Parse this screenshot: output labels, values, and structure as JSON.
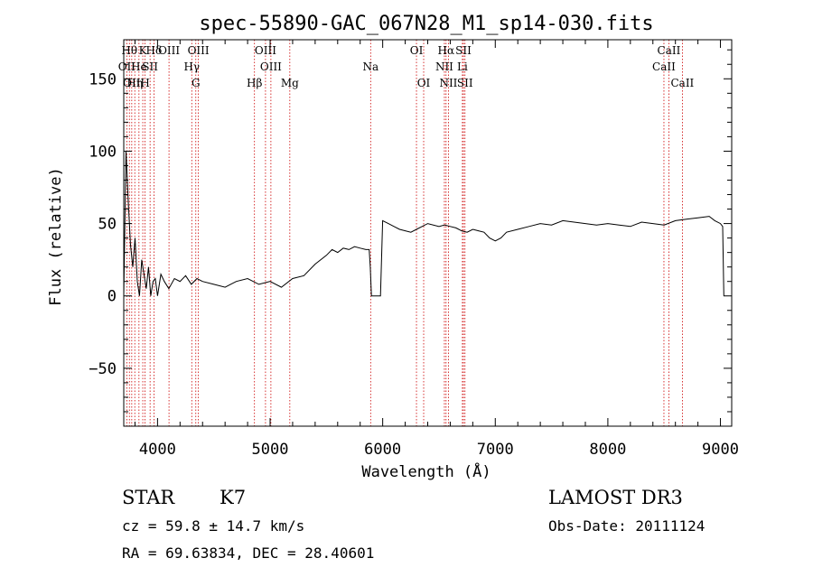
{
  "chart_data": {
    "type": "line",
    "title": "spec-55890-GAC_067N28_M1_sp14-030.fits",
    "xlabel": "Wavelength (Å)",
    "ylabel": "Flux (relative)",
    "xlim": [
      3700,
      9100
    ],
    "ylim": [
      -90,
      177
    ],
    "xticks": [
      4000,
      5000,
      6000,
      7000,
      8000,
      9000
    ],
    "yticks": [
      -50,
      0,
      50,
      100,
      150
    ],
    "grid": false,
    "line_color": "#000000",
    "marker_color": "#cc0000",
    "series": [
      {
        "x": [
          3700,
          3720,
          3740,
          3760,
          3780,
          3800,
          3820,
          3840,
          3860,
          3880,
          3900,
          3920,
          3940,
          3960,
          3980,
          4000,
          4030,
          4060,
          4100,
          4150,
          4200,
          4250,
          4300,
          4350,
          4400,
          4500,
          4600,
          4700,
          4800,
          4900,
          5000,
          5100,
          5200,
          5300,
          5400,
          5500,
          5550,
          5600,
          5650,
          5700,
          5750,
          5800,
          5850,
          5880,
          5890,
          5900,
          5960,
          5980,
          6000,
          6050,
          6100,
          6150,
          6200,
          6250,
          6300,
          6350,
          6400,
          6500,
          6550,
          6600,
          6650,
          6700,
          6750,
          6800,
          6850,
          6900,
          6950,
          7000,
          7050,
          7100,
          7200,
          7300,
          7400,
          7500,
          7600,
          7700,
          7800,
          7900,
          8000,
          8100,
          8200,
          8300,
          8400,
          8500,
          8600,
          8700,
          8800,
          8900,
          8950,
          9000,
          9020,
          9030
        ],
        "y": [
          0,
          100,
          65,
          35,
          20,
          40,
          10,
          0,
          25,
          15,
          5,
          20,
          0,
          10,
          12,
          0,
          15,
          10,
          5,
          12,
          10,
          14,
          8,
          12,
          10,
          8,
          6,
          10,
          12,
          8,
          10,
          6,
          12,
          14,
          22,
          28,
          32,
          30,
          33,
          32,
          34,
          33,
          32,
          32,
          20,
          0,
          0,
          0,
          52,
          50,
          48,
          46,
          45,
          44,
          46,
          48,
          50,
          48,
          49,
          48,
          47,
          45,
          44,
          46,
          45,
          44,
          40,
          38,
          40,
          44,
          46,
          48,
          50,
          49,
          52,
          51,
          50,
          49,
          50,
          49,
          48,
          51,
          50,
          49,
          52,
          53,
          54,
          55,
          52,
          50,
          48,
          0
        ]
      }
    ],
    "markers": [
      {
        "x": 3727,
        "label": "OII",
        "row": 2
      },
      {
        "x": 3750,
        "label": "Hθ",
        "row": 1
      },
      {
        "x": 3771,
        "label": "OII",
        "row": 3
      },
      {
        "x": 3798,
        "label": "Hη",
        "row": 3
      },
      {
        "x": 3835,
        "label": "He",
        "row": 2
      },
      {
        "x": 3869,
        "label": "K",
        "row": 1
      },
      {
        "x": 3889,
        "label": "H",
        "row": 3
      },
      {
        "x": 3934,
        "label": "SII",
        "row": 2
      },
      {
        "x": 3968,
        "label": "Hδ",
        "row": 1
      },
      {
        "x": 4102,
        "label": "OIII",
        "row": 1
      },
      {
        "x": 4304,
        "label": "Hγ",
        "row": 2
      },
      {
        "x": 4340,
        "label": "G",
        "row": 3
      },
      {
        "x": 4363,
        "label": "OIII",
        "row": 1
      },
      {
        "x": 4861,
        "label": "Hβ",
        "row": 3
      },
      {
        "x": 4959,
        "label": "OIII",
        "row": 1
      },
      {
        "x": 5007,
        "label": "OIII",
        "row": 2
      },
      {
        "x": 5175,
        "label": "Mg",
        "row": 3
      },
      {
        "x": 5893,
        "label": "Na",
        "row": 2
      },
      {
        "x": 6300,
        "label": "OI",
        "row": 1
      },
      {
        "x": 6364,
        "label": "OI",
        "row": 3
      },
      {
        "x": 6548,
        "label": "NII",
        "row": 2
      },
      {
        "x": 6563,
        "label": "Hα",
        "row": 1
      },
      {
        "x": 6584,
        "label": "NII",
        "row": 3
      },
      {
        "x": 6708,
        "label": "Li",
        "row": 2
      },
      {
        "x": 6717,
        "label": "SII",
        "row": 1
      },
      {
        "x": 6731,
        "label": "SII",
        "row": 3
      },
      {
        "x": 8498,
        "label": "CaII",
        "row": 2
      },
      {
        "x": 8542,
        "label": "CaII",
        "row": 1
      },
      {
        "x": 8662,
        "label": "CaII",
        "row": 3
      }
    ]
  },
  "info": {
    "class": "STAR",
    "subclass": "K7",
    "survey": "LAMOST DR3",
    "cz": "cz = 59.8 ± 14.7 km/s",
    "obs_date": "Obs-Date: 20111124",
    "radec": "RA =  69.63834, DEC =  28.40601"
  }
}
